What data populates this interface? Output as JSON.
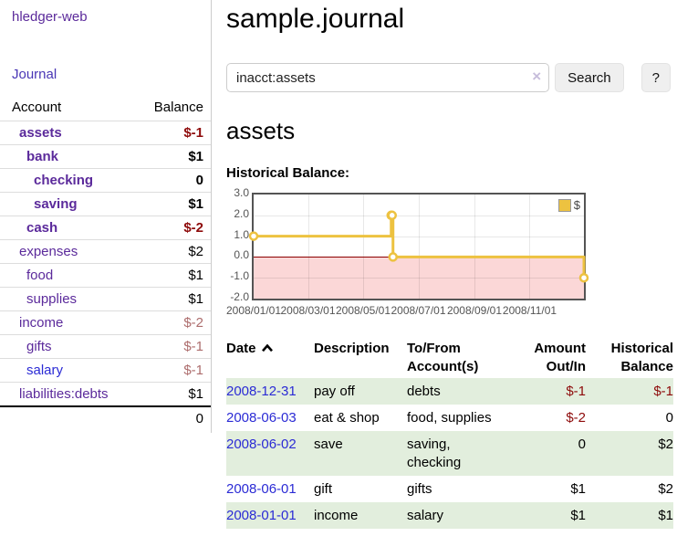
{
  "colors": {
    "purple": "#5b2a9b",
    "navIndigo": "#4936b5",
    "blue": "#2b2bd5",
    "negStrong": "#8e0b0b",
    "negMuted": "#ad6d6d",
    "green": "#e2eedd",
    "yellow": "#edc240",
    "pink": "#fbd7d7",
    "zeroLine": "#8b0000",
    "gridline": "rgba(0,0,0,0.09)",
    "chartBorder": "#545454",
    "tickText": "#545454"
  },
  "brand": {
    "label": "hledger-web"
  },
  "nav": {
    "journal": "Journal"
  },
  "sidebar": {
    "columns": {
      "account": "Account",
      "balance": "Balance"
    },
    "accounts": [
      {
        "name": "assets",
        "depth": 1,
        "bold": true,
        "balance": "$-1",
        "link_style": "visited"
      },
      {
        "name": "bank",
        "depth": 2,
        "bold": true,
        "balance": "$1",
        "link_style": "visited"
      },
      {
        "name": "checking",
        "depth": 3,
        "bold": true,
        "balance": "0",
        "link_style": "visited"
      },
      {
        "name": "saving",
        "depth": 3,
        "bold": true,
        "balance": "$1",
        "link_style": "visited"
      },
      {
        "name": "cash",
        "depth": 2,
        "bold": true,
        "balance": "$-2",
        "link_style": "visited"
      },
      {
        "name": "expenses",
        "depth": 1,
        "bold": false,
        "balance": "$2",
        "link_style": "visited"
      },
      {
        "name": "food",
        "depth": 2,
        "bold": false,
        "balance": "$1",
        "link_style": "visited"
      },
      {
        "name": "supplies",
        "depth": 2,
        "bold": false,
        "balance": "$1",
        "link_style": "visited"
      },
      {
        "name": "income",
        "depth": 1,
        "bold": false,
        "balance": "$-2",
        "link_style": "visited"
      },
      {
        "name": "gifts",
        "depth": 2,
        "bold": false,
        "balance": "$-1",
        "link_style": "visited"
      },
      {
        "name": "salary",
        "depth": 2,
        "bold": false,
        "balance": "$-1",
        "link_style": "unvisited"
      },
      {
        "name": "liabilities:debts",
        "depth": 1,
        "bold": false,
        "balance": "$1",
        "link_style": "visited"
      }
    ],
    "total": "0"
  },
  "header": {
    "title": "sample.journal"
  },
  "search": {
    "value": "inacct:assets",
    "clear_glyph": "×",
    "search_label": "Search",
    "help_label": "?"
  },
  "account_view": {
    "heading": "assets",
    "chart_label": "Historical Balance:"
  },
  "chart_data": {
    "type": "line",
    "step": true,
    "title": "Historical Balance:",
    "legend": [
      {
        "label": "$",
        "color": "#edc240"
      }
    ],
    "legend_position": "top-right",
    "series": [
      {
        "name": "$",
        "points": [
          [
            "2008-01-01",
            1
          ],
          [
            "2008-06-01",
            2
          ],
          [
            "2008-06-02",
            2
          ],
          [
            "2008-06-03",
            0
          ],
          [
            "2008-12-31",
            -1
          ]
        ]
      }
    ],
    "x_ticks": [
      "2008/01/01",
      "2008/03/01",
      "2008/05/01",
      "2008/07/01",
      "2008/09/01",
      "2008/11/01"
    ],
    "y_ticks": [
      "3.0",
      "2.0",
      "1.0",
      "0.0",
      "-1.0",
      "-2.0"
    ],
    "xlim": [
      "2008-01-01",
      "2008-12-31"
    ],
    "ylim": [
      -2,
      3
    ],
    "grid": true,
    "negative_region_below": 0
  },
  "register": {
    "columns": {
      "date": "Date",
      "sort_icon": "chevron-up",
      "description": "Description",
      "accounts_line1": "To/From",
      "accounts_line2": "Account(s)",
      "amount_line1": "Amount",
      "amount_line2": "Out/In",
      "balance_line1": "Historical",
      "balance_line2": "Balance"
    },
    "rows": [
      {
        "date": "2008-12-31",
        "description": "pay off",
        "accounts": "debts",
        "amount": "$-1",
        "balance": "$-1",
        "shaded": true
      },
      {
        "date": "2008-06-03",
        "description": "eat & shop",
        "accounts": "food, supplies",
        "amount": "$-2",
        "balance": "0",
        "shaded": false
      },
      {
        "date": "2008-06-02",
        "description": "save",
        "accounts": "saving, checking",
        "amount": "0",
        "balance": "$2",
        "shaded": true
      },
      {
        "date": "2008-06-01",
        "description": "gift",
        "accounts": "gifts",
        "amount": "$1",
        "balance": "$2",
        "shaded": false
      },
      {
        "date": "2008-01-01",
        "description": "income",
        "accounts": "salary",
        "amount": "$1",
        "balance": "$1",
        "shaded": true
      }
    ]
  }
}
